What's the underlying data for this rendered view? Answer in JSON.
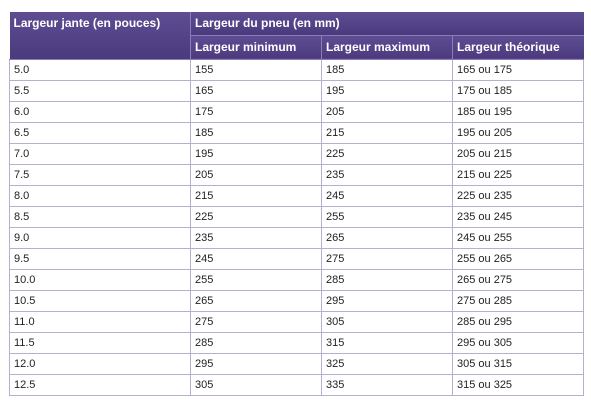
{
  "header": {
    "rim_width": "Largeur jante (en pouces)",
    "tire_width": "Largeur du pneu (en mm)",
    "min_width": "Largeur minimum",
    "max_width": "Largeur maximum",
    "theoretical_width": "Largeur théorique"
  },
  "rows": [
    {
      "rim": "5.0",
      "min": "155",
      "max": "185",
      "theo": "165 ou 175"
    },
    {
      "rim": "5.5",
      "min": "165",
      "max": "195",
      "theo": "175 ou 185"
    },
    {
      "rim": "6.0",
      "min": "175",
      "max": "205",
      "theo": "185 ou 195"
    },
    {
      "rim": "6.5",
      "min": "185",
      "max": "215",
      "theo": "195 ou 205"
    },
    {
      "rim": "7.0",
      "min": "195",
      "max": "225",
      "theo": "205 ou 215"
    },
    {
      "rim": "7.5",
      "min": "205",
      "max": "235",
      "theo": "215 ou 225"
    },
    {
      "rim": "8.0",
      "min": "215",
      "max": "245",
      "theo": "225 ou 235"
    },
    {
      "rim": "8.5",
      "min": "225",
      "max": "255",
      "theo": "235 ou 245"
    },
    {
      "rim": "9.0",
      "min": "235",
      "max": "265",
      "theo": "245 ou 255"
    },
    {
      "rim": "9.5",
      "min": "245",
      "max": "275",
      "theo": "255 ou 265"
    },
    {
      "rim": "10.0",
      "min": "255",
      "max": "285",
      "theo": "265 ou 275"
    },
    {
      "rim": "10.5",
      "min": "265",
      "max": "295",
      "theo": "275 ou 285"
    },
    {
      "rim": "11.0",
      "min": "275",
      "max": "305",
      "theo": "285 ou 295"
    },
    {
      "rim": "11.5",
      "min": "285",
      "max": "315",
      "theo": "295 ou 305"
    },
    {
      "rim": "12.0",
      "min": "295",
      "max": "325",
      "theo": "305 ou 315"
    },
    {
      "rim": "12.5",
      "min": "305",
      "max": "335",
      "theo": "315 ou 325"
    }
  ]
}
